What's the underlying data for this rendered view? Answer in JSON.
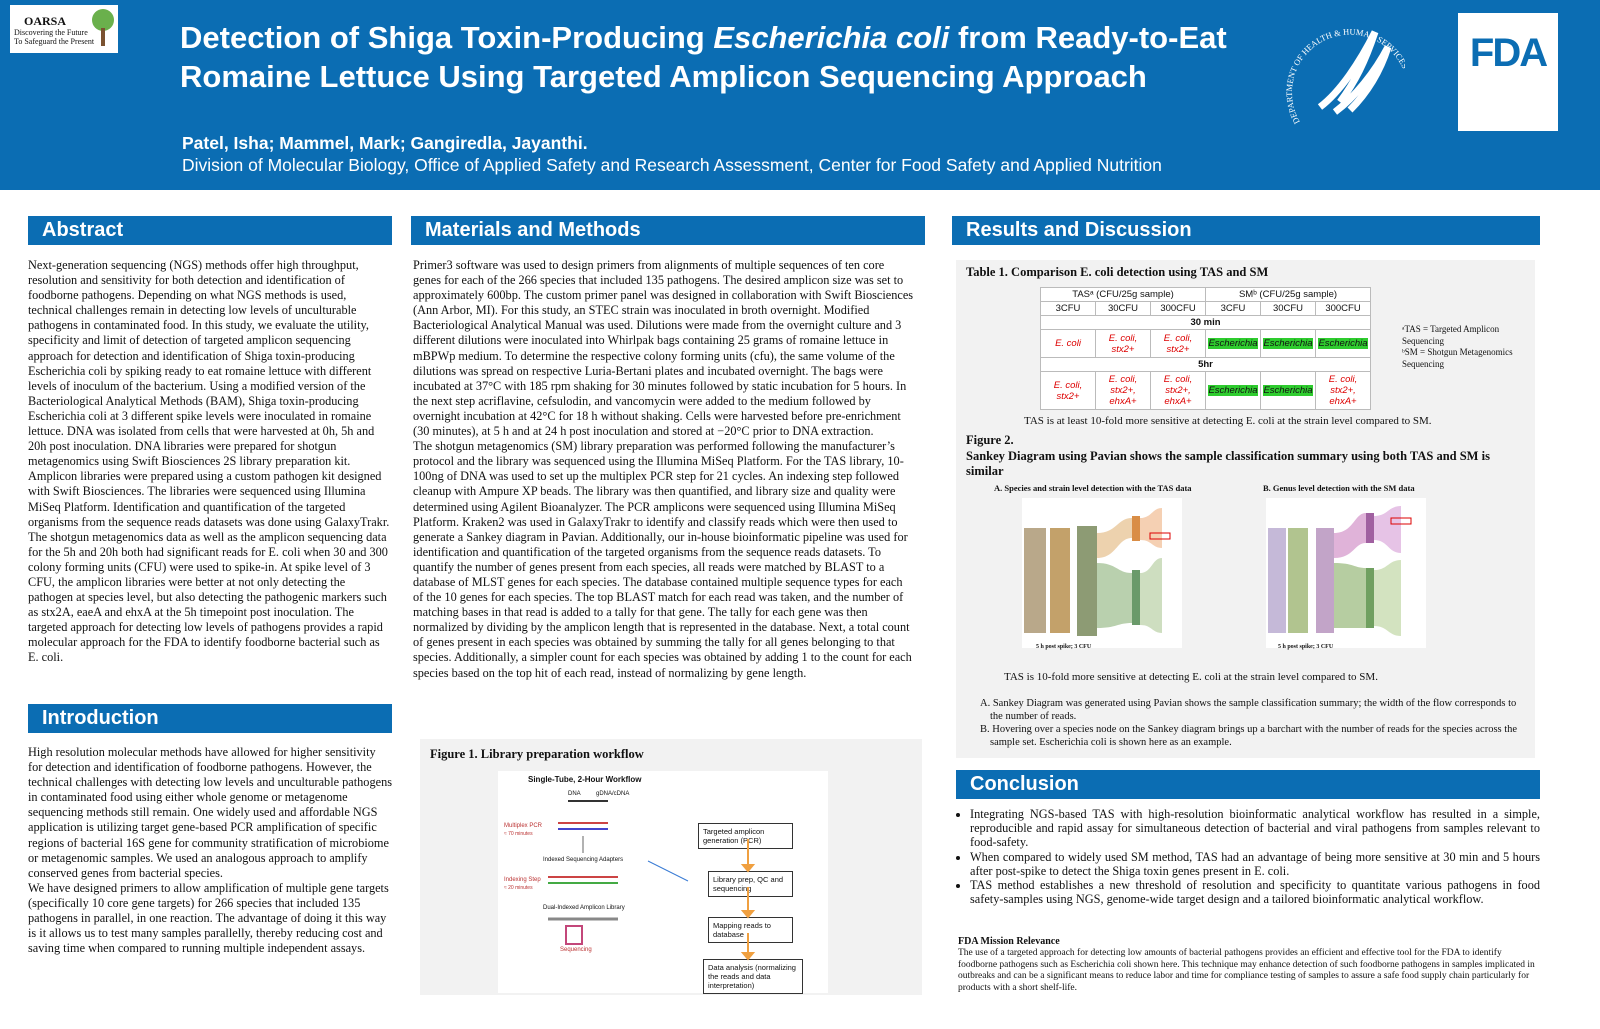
{
  "header": {
    "logo": {
      "name": "OARSA",
      "tagline_1": "Discovering the Future",
      "tagline_2": "To Safeguard the Present"
    },
    "title_line_1": [
      "Detection of Shiga Toxin-Producing ",
      "Escherichia coli",
      " from Ready-to-Eat"
    ],
    "title_line_2": "Romaine Lettuce Using Targeted Amplicon Sequencing Approach",
    "authors": "Patel, Isha; Mammel, Mark; Gangiredla, Jayanthi.",
    "affiliation": "Division of Molecular Biology, Office of Applied Safety and Research Assessment, Center for Food Safety and Applied Nutrition",
    "seal_text": "DEPARTMENT OF HEALTH & HUMAN SERVICES • USA",
    "fda_logo": "FDA"
  },
  "abstract": {
    "heading": "Abstract",
    "text": "Next-generation sequencing (NGS) methods offer high throughput, resolution and sensitivity for both detection and identification of foodborne pathogens. Depending on what NGS methods is used, technical challenges remain in detecting low levels of unculturable pathogens in contaminated food. In this study, we evaluate the utility, specificity and limit of detection of targeted amplicon sequencing approach for detection and identification of Shiga toxin-producing Escherichia coli by spiking ready to eat romaine lettuce with different levels of inoculum of the bacterium. Using a modified version of the Bacteriological Analytical Methods (BAM), Shiga toxin-producing Escherichia coli at 3 different spike levels were inoculated in romaine lettuce. DNA was isolated from cells that were harvested at 0h, 5h and 20h post inoculation. DNA libraries were prepared for shotgun metagenomics using Swift Biosciences 2S library preparation kit. Amplicon libraries were prepared using a custom pathogen kit designed with Swift Biosciences. The libraries were sequenced using Illumina MiSeq Platform. Identification and quantification of the targeted organisms from the sequence reads datasets was done using GalaxyTrakr. The shotgun metagenomics data as well as the amplicon sequencing data for the 5h and 20h both had significant reads for E. coli when 30 and 300 colony forming units (CFU) were used to spike-in. At spike level of 3 CFU, the amplicon libraries were better at not only detecting the pathogen at species level, but also detecting the pathogenic markers such as stx2A, eaeA and ehxA at the 5h timepoint post inoculation. The targeted approach for detecting low levels of pathogens provides a rapid molecular approach for the FDA to identify foodborne bacterial such as E. coli."
  },
  "introduction": {
    "heading": "Introduction",
    "paragraphs": [
      "High resolution molecular methods have allowed for higher sensitivity for detection and identification of foodborne pathogens. However, the technical challenges with detecting low levels and unculturable pathogens in contaminated food using either whole genome or metagenome sequencing methods still remain. One widely used and affordable NGS application is utilizing target gene-based PCR amplification of specific regions of bacterial 16S gene for community stratification of microbiome or metagenomic samples. We used an analogous approach to amplify conserved genes from bacterial species.",
      "We have designed primers to allow amplification of multiple gene targets (specifically 10 core gene targets) for 266 species that included 135 pathogens in parallel, in one reaction. The advantage of doing it this way is it allows us to test many samples parallelly, thereby reducing cost and saving time when compared to running multiple independent assays."
    ]
  },
  "methods": {
    "heading": "Materials and Methods",
    "paragraphs": [
      "Primer3 software was used to design primers from alignments of multiple sequences of ten core genes for each of the 266 species that included 135 pathogens. The desired amplicon size was set to approximately 600bp. The custom primer panel was designed in collaboration with Swift Biosciences (Ann Arbor, MI). For this study, an STEC strain was inoculated in broth overnight. Modified Bacteriological Analytical Manual was used. Dilutions were made from the overnight culture and 3 different dilutions were inoculated into Whirlpak bags containing 25 grams of romaine lettuce in mBPWp medium. To determine the respective colony forming units (cfu), the same volume of the dilutions was spread on respective Luria-Bertani plates and incubated overnight. The bags were incubated at 37°C with 185 rpm shaking for 30 minutes followed by static incubation for 5 hours. In the next step acriflavine, cefsulodin, and vancomycin were added to the medium followed by overnight incubation at 42°C for 18 h without shaking. Cells were harvested before pre-enrichment (30 minutes), at 5 h and at 24 h post inoculation and stored at −20°C prior to DNA extraction.",
      "The shotgun metagenomics (SM) library preparation was performed following the manufacturer’s protocol and the library was sequenced using the Illumina MiSeq Platform. For the TAS library, 10-100ng of DNA was used to set up the multiplex PCR step for 21 cycles. An indexing step followed cleanup with Ampure XP beads. The library was then quantified, and library size and quality were determined using Agilent Bioanalyzer. The PCR amplicons were sequenced using Illumina MiSeq Platform. Kraken2 was used in GalaxyTrakr to identify and classify reads which were then used to generate a Sankey diagram in Pavian. Additionally, our in-house bioinformatic pipeline was used for identification and quantification of the targeted organisms from the sequence reads datasets. To quantify the number of genes present from each species, all reads were matched by BLAST to a database of MLST genes for each species. The database contained multiple sequence types for each of the 10 genes for each species. The top BLAST match for each read was taken, and the number of matching bases in that read is added to a tally for that gene. The tally for each gene was then normalized by dividing by the amplicon length that is represented in the database. Next, a total count of genes present in each species was obtained by summing the tally for all genes belonging to that species. Additionally, a simpler count for each species was obtained by adding 1 to the count for each species based on the top hit of each read, instead of normalizing by gene length."
    ],
    "figure_1": {
      "caption": "Figure 1. Library preparation workflow",
      "workflow_title": "Single-Tube, 2-Hour Workflow",
      "dna": "DNA",
      "input": "gDNA/cDNA",
      "multiplex_pcr": "Multiplex PCR",
      "pcr_time": "≈ 70 minutes",
      "adapters": "Indexed Sequencing Adapters",
      "indexing": "Indexing Step",
      "indexing_time": "≈ 20 minutes",
      "library": "Dual-Indexed Amplicon Library",
      "sequencing": "Sequencing",
      "steps": [
        "Targeted amplicon generation (PCR)",
        "Library prep, QC and sequencing",
        "Mapping reads to database",
        "Data analysis (normalizing the reads and data interpretation)"
      ]
    }
  },
  "results": {
    "heading": "Results and Discussion",
    "table_1": {
      "caption": "Table 1.  Comparison E. coli detection using TAS and SM",
      "groups": [
        "TASᵃ (CFU/25g sample)",
        "SMᵇ (CFU/25g sample)"
      ],
      "columns": [
        "3CFU",
        "30CFU",
        "300CFU",
        "3CFU",
        "30CFU",
        "300CFU"
      ],
      "rows": [
        {
          "time": "30 min",
          "cells": [
            "E. coli",
            "E. coli, stx2+",
            "E. coli, stx2+",
            "Escherichia",
            "Escherichia",
            "Escherichia"
          ]
        },
        {
          "time": "5hr",
          "cells": [
            "E. coli, stx2+",
            "E. coli, stx2+, ehxA+",
            "E. coli, stx2+, ehxA+",
            "Escherichia",
            "Escherichia",
            "E. coli, stx2+, ehxA+"
          ]
        }
      ],
      "footnotes": [
        "ᵃTAS = Targeted Amplicon Sequencing",
        "ᵇSM = Shotgun Metagenomics Sequencing"
      ],
      "note": "TAS is at least 10-fold more sensitive at detecting E. coli at the strain level compared to SM."
    },
    "figure_2": {
      "label": "Figure 2.",
      "title": "Sankey Diagram using Pavian shows the sample classification summary using both TAS and SM is similar",
      "panel_a": "A. Species and strain level detection with the TAS data",
      "panel_b": "B. Genus level detection with the SM data",
      "panel_a_caption": "5 h post spike; 3 CFU",
      "panel_b_caption": "5 h post spike; 3 CFU",
      "note": "TAS is 10-fold more sensitive at detecting E. coli at the strain level compared to SM.",
      "notes": [
        "A. Sankey Diagram was generated using Pavian shows the sample classification summary; the width of the flow corresponds to the number of reads.",
        "B. Hovering over a species node on the Sankey diagram brings up a barchart with the number of reads for the species across the sample set. Escherichia coli is shown here as an example."
      ]
    }
  },
  "conclusion": {
    "heading": "Conclusion",
    "bullets": [
      "Integrating NGS-based TAS with high-resolution bioinformatic analytical workflow has resulted in a simple, reproducible and rapid assay for simultaneous detection of bacterial and viral pathogens from samples relevant to food-safety.",
      "When compared to widely used SM method, TAS had an advantage of being more sensitive at 30 min and 5 hours after post-spike to detect the Shiga toxin genes present in E. coli.",
      "TAS method establishes a new threshold of resolution and specificity to quantitate various pathogens in food safety-samples using NGS, genome-wide target design and a tailored bioinformatic analytical workflow."
    ],
    "mission_title": "FDA Mission Relevance",
    "mission_text": "The use of a targeted approach for detecting low amounts of bacterial pathogens provides an efficient and effective tool for the FDA to identify foodborne pathogens such as Escherichia coli shown here. This technique may enhance detection of such foodborne pathogens in samples implicated in outbreaks and can be a significant means to reduce labor and time for compliance testing of samples to assure a safe food supply chain particularly for products with a short shelf-life."
  }
}
